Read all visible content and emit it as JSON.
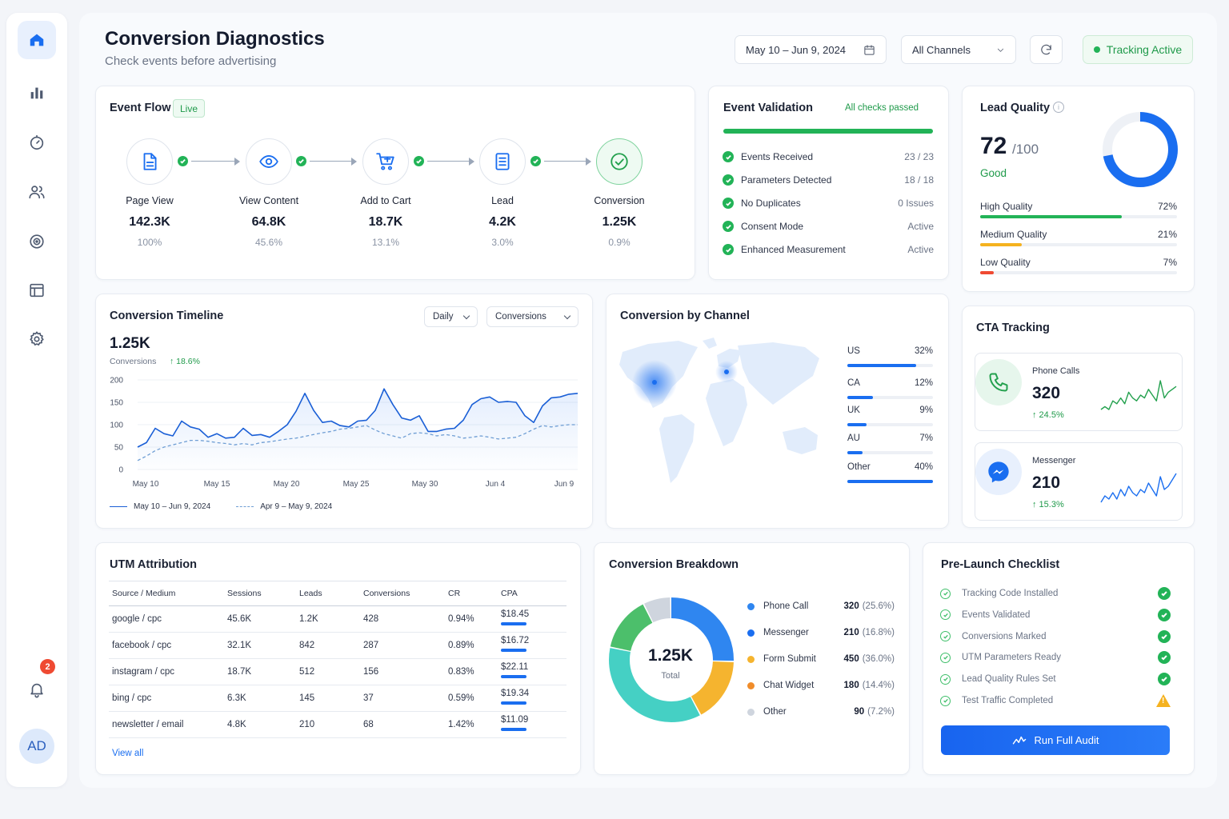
{
  "page": {
    "title": "Conversion Diagnostics",
    "subtitle": "Check events before advertising"
  },
  "header": {
    "date_range": "May 10 – Jun 9, 2024",
    "channel_filter": "All Channels",
    "tracking_status": "Tracking Active"
  },
  "sidebar": {
    "items": [
      {
        "name": "home-icon",
        "active": true
      },
      {
        "name": "bar-chart-icon",
        "active": false
      },
      {
        "name": "gauge-icon",
        "active": false
      },
      {
        "name": "users-icon",
        "active": false
      },
      {
        "name": "target-icon",
        "active": false
      },
      {
        "name": "table-icon",
        "active": false
      },
      {
        "name": "gear-icon",
        "active": false
      }
    ],
    "notifications_count": "2",
    "avatar_initials": "AD"
  },
  "event_flow": {
    "title": "Event Flow",
    "badge": "Live",
    "steps": [
      {
        "name": "Page View",
        "value": "142.3K",
        "pct": "100%",
        "icon": "document-icon"
      },
      {
        "name": "View Content",
        "value": "64.8K",
        "pct": "45.6%",
        "icon": "eye-icon"
      },
      {
        "name": "Add to Cart",
        "value": "18.7K",
        "pct": "13.1%",
        "icon": "cart-icon"
      },
      {
        "name": "Lead",
        "value": "4.2K",
        "pct": "3.0%",
        "icon": "form-icon"
      },
      {
        "name": "Conversion",
        "value": "1.25K",
        "pct": "0.9%",
        "icon": "check-circle-icon"
      }
    ]
  },
  "event_validation": {
    "title": "Event Validation",
    "status": "All checks passed",
    "progress": 1.0,
    "rows": [
      {
        "label": "Events Received",
        "value": "23 / 23"
      },
      {
        "label": "Parameters Detected",
        "value": "18 / 18"
      },
      {
        "label": "No Duplicates",
        "value": "0 Issues"
      },
      {
        "label": "Consent Mode",
        "value": "Active"
      },
      {
        "label": "Enhanced Measurement",
        "value": "Active"
      }
    ]
  },
  "lead_quality": {
    "title": "Lead Quality",
    "score": "72",
    "max": "/100",
    "rating": "Good",
    "score_fraction": 0.72,
    "rows": [
      {
        "label": "High Quality",
        "value": "72%",
        "fraction": 0.72,
        "color": "#22b357"
      },
      {
        "label": "Medium Quality",
        "value": "21%",
        "fraction": 0.21,
        "color": "#f5b21f"
      },
      {
        "label": "Low Quality",
        "value": "7%",
        "fraction": 0.07,
        "color": "#ef4a32"
      }
    ]
  },
  "timeline": {
    "title": "Conversion Timeline",
    "dd_interval": "Daily",
    "dd_metric": "Conversions",
    "total": "1.25K",
    "metric_label": "Conversions",
    "change": "↑ 18.6%",
    "legend_current": "May 10 – Jun 9, 2024",
    "legend_previous": "Apr 9 – May 9, 2024"
  },
  "chart_data": {
    "type": "line",
    "x_ticks": [
      "May 10",
      "May 15",
      "May 20",
      "May 25",
      "May 30",
      "Jun 4",
      "Jun 9"
    ],
    "y_ticks": [
      0,
      50,
      100,
      150,
      200
    ],
    "ylim": [
      0,
      200
    ],
    "title": "",
    "xlabel": "",
    "ylabel": "",
    "series": [
      {
        "name": "May 10 – Jun 9, 2024",
        "color": "#1a5fd6",
        "style": "solid",
        "values": [
          50,
          60,
          92,
          80,
          75,
          108,
          95,
          90,
          72,
          80,
          70,
          72,
          92,
          76,
          78,
          72,
          85,
          100,
          130,
          170,
          132,
          105,
          108,
          98,
          95,
          108,
          110,
          132,
          180,
          145,
          115,
          110,
          120,
          85,
          85,
          90,
          92,
          110,
          145,
          158,
          162,
          150,
          152,
          150,
          120,
          105,
          142,
          160,
          162,
          168,
          170
        ]
      },
      {
        "name": "Apr 9 – May 9, 2024",
        "color": "#6f9ed4",
        "style": "dashed",
        "values": [
          20,
          30,
          42,
          50,
          55,
          60,
          65,
          65,
          63,
          60,
          58,
          55,
          58,
          55,
          60,
          62,
          65,
          68,
          70,
          74,
          78,
          82,
          85,
          90,
          92,
          95,
          98,
          88,
          80,
          75,
          70,
          80,
          82,
          80,
          75,
          78,
          75,
          70,
          72,
          75,
          72,
          68,
          70,
          72,
          80,
          90,
          98,
          95,
          98,
          100,
          100
        ]
      }
    ]
  },
  "channels": {
    "title": "Conversion by Channel",
    "rows": [
      {
        "label": "US",
        "value": "32%",
        "fraction": 0.32
      },
      {
        "label": "CA",
        "value": "12%",
        "fraction": 0.12
      },
      {
        "label": "UK",
        "value": "9%",
        "fraction": 0.09
      },
      {
        "label": "AU",
        "value": "7%",
        "fraction": 0.07
      },
      {
        "label": "Other",
        "value": "40%",
        "fraction": 0.4
      }
    ]
  },
  "cta": {
    "title": "CTA Tracking",
    "items": [
      {
        "label": "Phone Calls",
        "value": "320",
        "change": "↑ 24.5%",
        "color": "#22a04d",
        "icon": "phone-icon",
        "spark": [
          2,
          3,
          2,
          5,
          4,
          6,
          4,
          8,
          6,
          5,
          7,
          6,
          9,
          7,
          5,
          12,
          6,
          8,
          9,
          10
        ]
      },
      {
        "label": "Messenger",
        "value": "210",
        "change": "↑ 15.3%",
        "color": "#1a6ef0",
        "icon": "messenger-icon",
        "spark": [
          2,
          4,
          3,
          5,
          3,
          6,
          4,
          7,
          5,
          4,
          6,
          5,
          8,
          6,
          4,
          10,
          6,
          7,
          9,
          11
        ]
      }
    ]
  },
  "utm": {
    "title": "UTM Attribution",
    "columns": [
      "Source / Medium",
      "Sessions",
      "Leads",
      "Conversions",
      "CR",
      "CPA"
    ],
    "rows": [
      [
        "google / cpc",
        "45.6K",
        "1.2K",
        "428",
        "0.94%",
        "$18.45"
      ],
      [
        "facebook / cpc",
        "32.1K",
        "842",
        "287",
        "0.89%",
        "$16.72"
      ],
      [
        "instagram / cpc",
        "18.7K",
        "512",
        "156",
        "0.83%",
        "$22.11"
      ],
      [
        "bing / cpc",
        "6.3K",
        "145",
        "37",
        "0.59%",
        "$19.34"
      ],
      [
        "newsletter / email",
        "4.8K",
        "210",
        "68",
        "1.42%",
        "$11.09"
      ]
    ],
    "view_all": "View all"
  },
  "breakdown": {
    "title": "Conversion Breakdown",
    "center_value": "1.25K",
    "center_label": "Total",
    "slices": [
      {
        "label": "Phone Call",
        "value": "320",
        "pct": "(25.6%)",
        "share": 25.6,
        "color": "#2f86f0"
      },
      {
        "label": "Messenger",
        "value": "210",
        "pct": "(16.8%)",
        "share": 16.8,
        "color": "#f5b42f"
      },
      {
        "label": "Form Submit",
        "value": "450",
        "pct": "(36.0%)",
        "share": 36.0,
        "color": "#45d0c4"
      },
      {
        "label": "Chat Widget",
        "value": "180",
        "pct": "(14.4%)",
        "share": 14.4,
        "color": "#4cbf6b"
      },
      {
        "label": "Other",
        "value": "90",
        "pct": "(7.2%)",
        "share": 7.2,
        "color": "#cfd5de"
      }
    ],
    "legend_colors": [
      "#2f86f0",
      "#1a6ef0",
      "#f5b42f",
      "#f08c2a",
      "#cfd5de"
    ]
  },
  "checklist": {
    "title": "Pre-Launch Checklist",
    "items": [
      {
        "label": "Tracking Code Installed",
        "status": "done"
      },
      {
        "label": "Events Validated",
        "status": "done"
      },
      {
        "label": "Conversions Marked",
        "status": "done"
      },
      {
        "label": "UTM Parameters Ready",
        "status": "done"
      },
      {
        "label": "Lead Quality Rules Set",
        "status": "done"
      },
      {
        "label": "Test Traffic Completed",
        "status": "warning"
      }
    ],
    "button": "Run Full Audit"
  }
}
